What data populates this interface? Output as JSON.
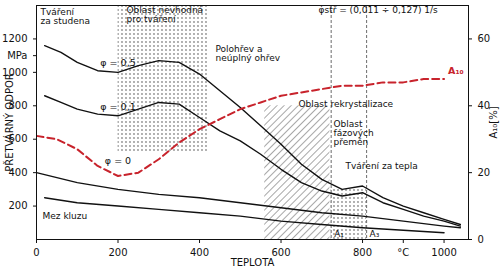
{
  "chart_data": {
    "type": "line",
    "x_label": "TEPLOTA",
    "y_label": "PŘETVÁRNÝ ODPOR",
    "y2_label": "A₁₀[%]",
    "xlim": [
      0,
      1060
    ],
    "xticks": [
      0,
      200,
      400,
      600,
      800,
      {
        "value": 900,
        "label": "°C"
      },
      1000
    ],
    "ylim": [
      0,
      1400
    ],
    "yticks": [
      200,
      400,
      600,
      800,
      1000,
      {
        "value": 1100,
        "label": "MPa"
      },
      1200
    ],
    "y2lim": [
      0,
      70
    ],
    "y2ticks": [
      0,
      20,
      40,
      60
    ],
    "grid": false,
    "series": [
      {
        "name": "φ = 0,5",
        "color": "#111111",
        "line_style": "solid",
        "x": [
          20,
          60,
          100,
          150,
          200,
          250,
          300,
          350,
          400,
          450,
          500,
          550,
          600,
          650,
          700,
          750,
          800,
          850,
          900,
          950,
          1000,
          1040
        ],
        "values": [
          1160,
          1120,
          1060,
          1010,
          1000,
          1040,
          1070,
          1060,
          990,
          890,
          790,
          680,
          570,
          450,
          360,
          300,
          320,
          250,
          200,
          160,
          120,
          90
        ]
      },
      {
        "name": "φ = 0,1",
        "color": "#111111",
        "line_style": "solid",
        "x": [
          20,
          60,
          100,
          150,
          200,
          250,
          300,
          350,
          400,
          450,
          500,
          550,
          600,
          650,
          700,
          750,
          800,
          850,
          900,
          950,
          1000,
          1040
        ],
        "values": [
          860,
          820,
          780,
          750,
          740,
          780,
          820,
          810,
          730,
          650,
          590,
          510,
          420,
          340,
          290,
          260,
          280,
          220,
          180,
          140,
          110,
          80
        ]
      },
      {
        "name": "φ = 0",
        "color": "#111111",
        "line_style": "solid",
        "x": [
          0,
          100,
          200,
          300,
          400,
          500,
          600,
          700,
          800,
          900,
          1000,
          1040
        ],
        "values": [
          400,
          340,
          300,
          270,
          250,
          220,
          190,
          160,
          140,
          110,
          80,
          70
        ]
      },
      {
        "name": "Mez kluzu",
        "color": "#111111",
        "line_style": "solid",
        "x": [
          20,
          100,
          200,
          300,
          400,
          500,
          600,
          700,
          800,
          900,
          1000
        ],
        "values": [
          250,
          220,
          200,
          180,
          160,
          140,
          110,
          90,
          70,
          55,
          40
        ]
      },
      {
        "name": "A₁₀",
        "color": "#c8232c",
        "line_style": "dashed",
        "axis": "y2",
        "x": [
          0,
          50,
          100,
          150,
          200,
          250,
          300,
          350,
          400,
          450,
          500,
          550,
          600,
          650,
          700,
          750,
          800,
          850,
          900,
          950,
          1000
        ],
        "values": [
          31,
          30,
          27,
          22,
          19,
          20,
          24,
          29,
          33,
          36,
          39,
          41,
          43,
          44,
          45,
          46,
          46,
          47,
          47,
          48,
          48
        ]
      }
    ],
    "regions": [
      {
        "type": "dotted",
        "x": [
          200,
          420
        ],
        "y": [
          520,
          1400
        ]
      },
      {
        "type": "hatched",
        "x": [
          560,
          720
        ],
        "y": [
          0,
          800
        ]
      },
      {
        "type": "dotted",
        "x": [
          723,
          810
        ],
        "y": [
          0,
          300
        ]
      }
    ],
    "markers": [
      {
        "label": "A₁",
        "x": 723
      },
      {
        "label": "A₃",
        "x": 810
      }
    ],
    "annotations": [
      {
        "text": "Tváření\nza studena",
        "color": "#2f6fd6",
        "line_style": "underline"
      },
      {
        "text": "Oblast nevhodná\npro tváření"
      },
      {
        "text": "φ̇stř = (0,011 ÷ 0,127) 1/s"
      },
      {
        "text": "Polohřev a\nneúplný ohřev",
        "color": "#1f9e3a",
        "line_style": "double_arrow",
        "x": [
          400,
          650
        ]
      },
      {
        "text": "Oblast rekrystalizace"
      },
      {
        "text": "Oblast\nfázových\npřeměn"
      },
      {
        "text": "Tváření za tepla",
        "color": "#c8232c",
        "line_style": "arrow",
        "x": [
          1040,
          945
        ]
      }
    ]
  }
}
